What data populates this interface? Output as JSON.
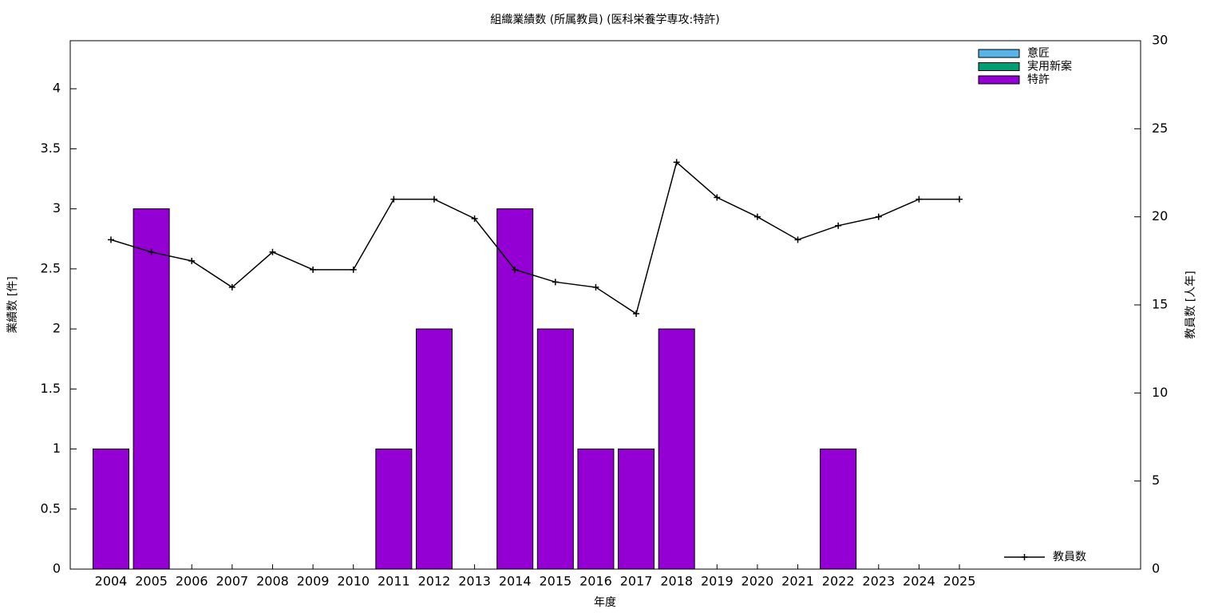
{
  "chart_data": {
    "type": "bar",
    "title": "組織業績数 (所属教員) (医科栄養学専攻:特許)",
    "x_label": "年度",
    "y_label": "業績数 [件]",
    "y2_label": "教員数 [人年]",
    "categories": [
      "2004",
      "2005",
      "2006",
      "2007",
      "2008",
      "2009",
      "2010",
      "2011",
      "2012",
      "2013",
      "2014",
      "2015",
      "2016",
      "2017",
      "2018",
      "2019",
      "2020",
      "2021",
      "2022",
      "2023",
      "2024",
      "2025"
    ],
    "stacked": true,
    "legend": "top-right",
    "series": [
      {
        "name": "意匠",
        "color": "#56b4e9",
        "values": [
          0,
          0,
          0,
          0,
          0,
          0,
          0,
          0,
          0,
          0,
          0,
          0,
          0,
          0,
          0,
          0,
          0,
          0,
          0,
          0,
          0,
          0
        ]
      },
      {
        "name": "実用新案",
        "color": "#009e73",
        "values": [
          0,
          0,
          0,
          0,
          0,
          0,
          0,
          0,
          0,
          0,
          0,
          0,
          0,
          0,
          0,
          0,
          0,
          0,
          0,
          0,
          0,
          0
        ]
      },
      {
        "name": "特許",
        "color": "#9400d3",
        "values": [
          1,
          3,
          0,
          0,
          0,
          0,
          0,
          1,
          2,
          0,
          3,
          2,
          1,
          1,
          2,
          0,
          0,
          0,
          1,
          0,
          0,
          0
        ]
      },
      {
        "name": "教員数",
        "color": "#000000",
        "type": "line",
        "axis": "y2",
        "values": [
          18.7,
          18.0,
          17.5,
          16.0,
          18.0,
          17.0,
          17.0,
          21.0,
          21.0,
          19.9,
          17.0,
          16.3,
          16.0,
          14.5,
          23.1,
          21.1,
          20.0,
          18.7,
          19.5,
          20.0,
          21.0,
          21.0
        ]
      }
    ],
    "ylim": [
      0,
      4.4
    ],
    "yticks": [
      0,
      0.5,
      1,
      1.5,
      2,
      2.5,
      3,
      3.5,
      4
    ],
    "y2lim": [
      0,
      30
    ],
    "y2ticks": [
      0,
      5,
      10,
      15,
      20,
      25,
      30
    ]
  }
}
